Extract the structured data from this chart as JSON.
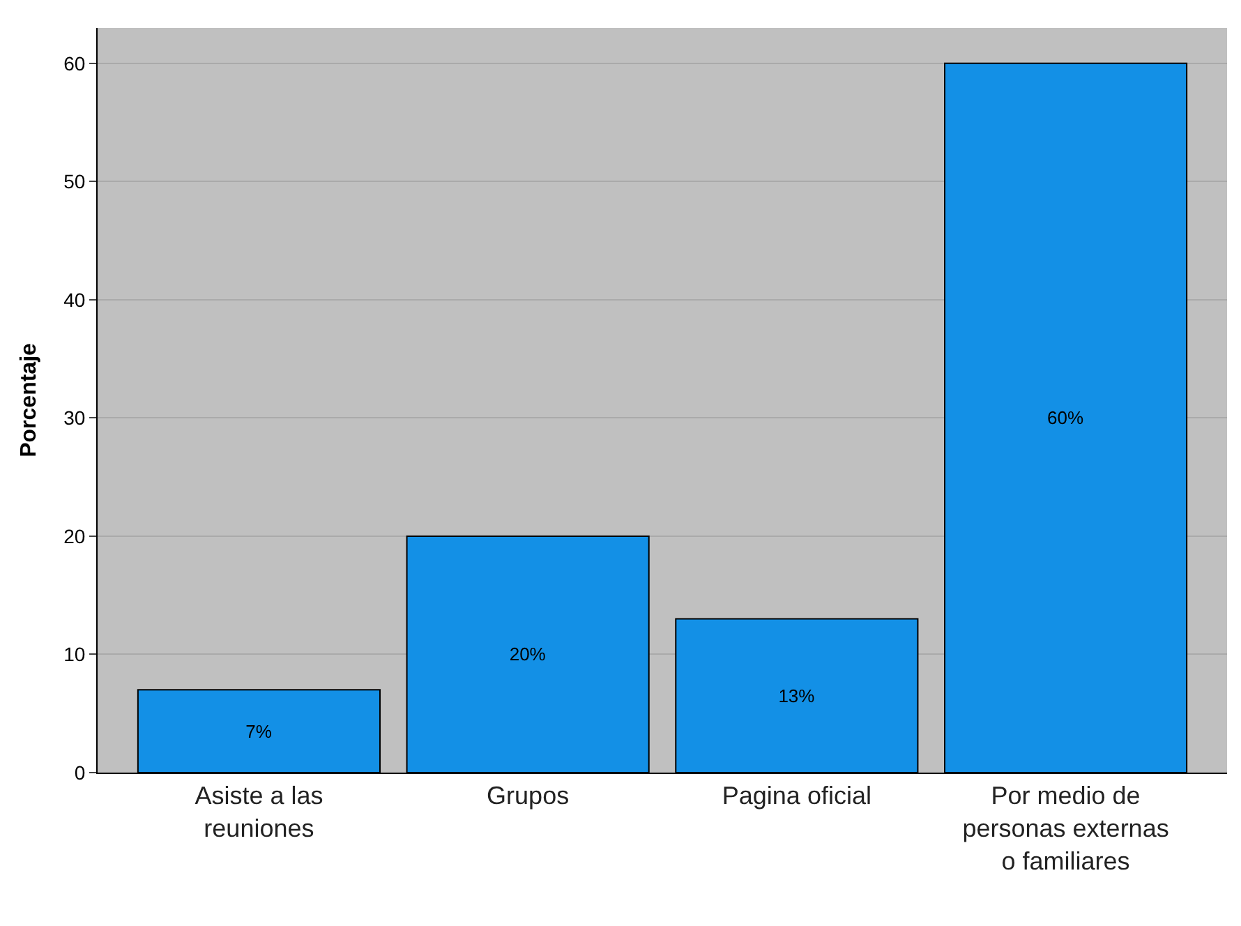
{
  "chart_data": {
    "type": "bar",
    "ylabel": "Porcentaje",
    "categories": [
      "Asiste a las reuniones",
      "Grupos",
      "Pagina oficial",
      "Por medio de personas externas o familiares"
    ],
    "values": [
      7,
      20,
      13,
      60
    ],
    "value_labels": [
      "7%",
      "20%",
      "13%",
      "60%"
    ],
    "color": "#1390e6",
    "ylim": [
      0,
      63
    ],
    "yticks": [
      0,
      10,
      20,
      30,
      40,
      50,
      60
    ],
    "grid": "y"
  }
}
